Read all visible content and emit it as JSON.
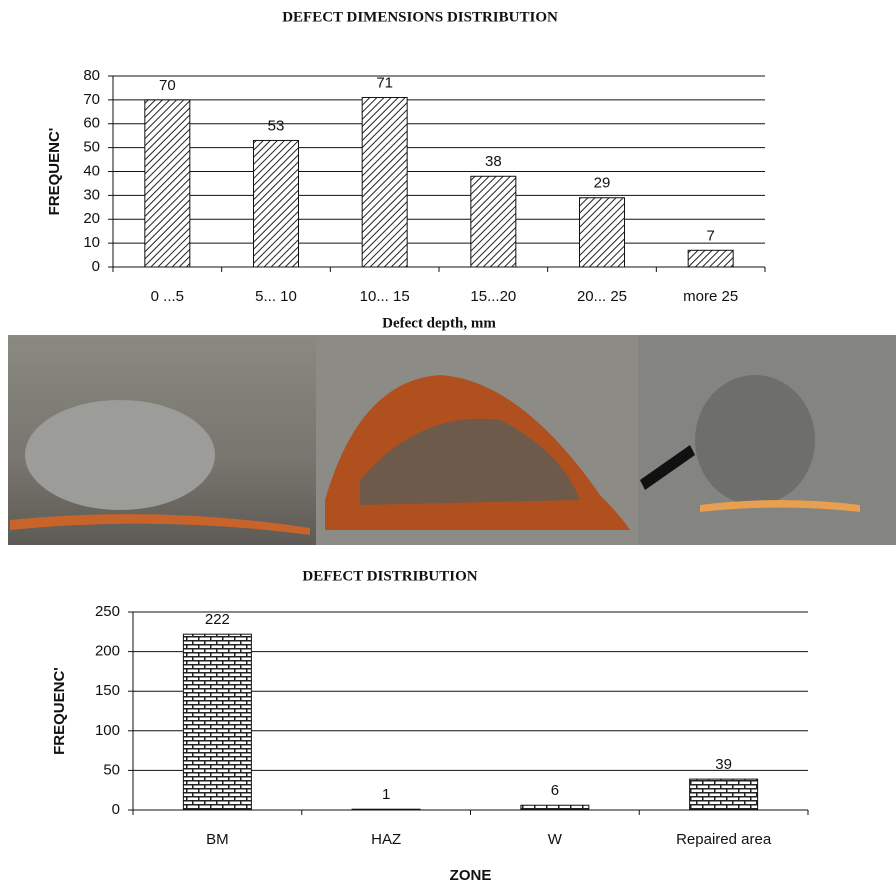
{
  "chart_data": [
    {
      "type": "bar",
      "title": "DEFECT DIMENSIONS DISTRIBUTION",
      "y_label": "FREQUENC'",
      "x_label": "Defect depth, mm",
      "categories": [
        "0 ...5",
        "5... 10",
        "10... 15",
        "15...20",
        "20... 25",
        "more 25"
      ],
      "values": [
        70,
        53,
        71,
        38,
        29,
        7
      ],
      "ylim": [
        0,
        80
      ],
      "yticks": [
        0,
        10,
        20,
        30,
        40,
        50,
        60,
        70,
        80
      ],
      "grid": true
    },
    {
      "type": "bar",
      "title": "DEFECT DISTRIBUTION",
      "y_label": "FREQUENC'",
      "x_label": "ZONE",
      "categories": [
        "BM",
        "HAZ",
        "W",
        "Repaired area"
      ],
      "values": [
        222,
        1,
        6,
        39
      ],
      "ylim": [
        0,
        250
      ],
      "yticks": [
        0,
        50,
        100,
        150,
        200,
        250
      ],
      "grid": true
    }
  ]
}
